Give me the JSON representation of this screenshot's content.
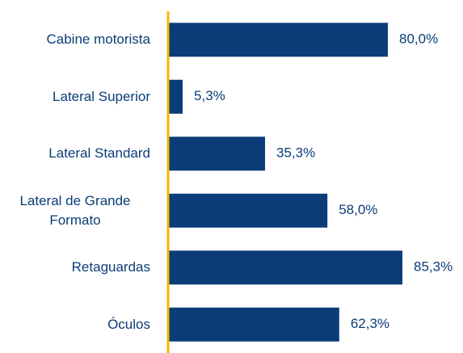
{
  "chart_data": {
    "type": "bar",
    "orientation": "horizontal",
    "categories": [
      "Cabine motorista",
      "Lateral Superior",
      "Lateral Standard",
      "Lateral de Grande Formato",
      "Retaguardas",
      "Óculos"
    ],
    "values": [
      80.0,
      5.3,
      35.3,
      58.0,
      85.3,
      62.3
    ],
    "value_labels": [
      "80,0%",
      "5,3%",
      "35,3%",
      "58,0%",
      "85,3%",
      "62,3%"
    ],
    "color": "#0c3c78",
    "axis_color": "#f5b800",
    "xlim": [
      0,
      100
    ]
  }
}
